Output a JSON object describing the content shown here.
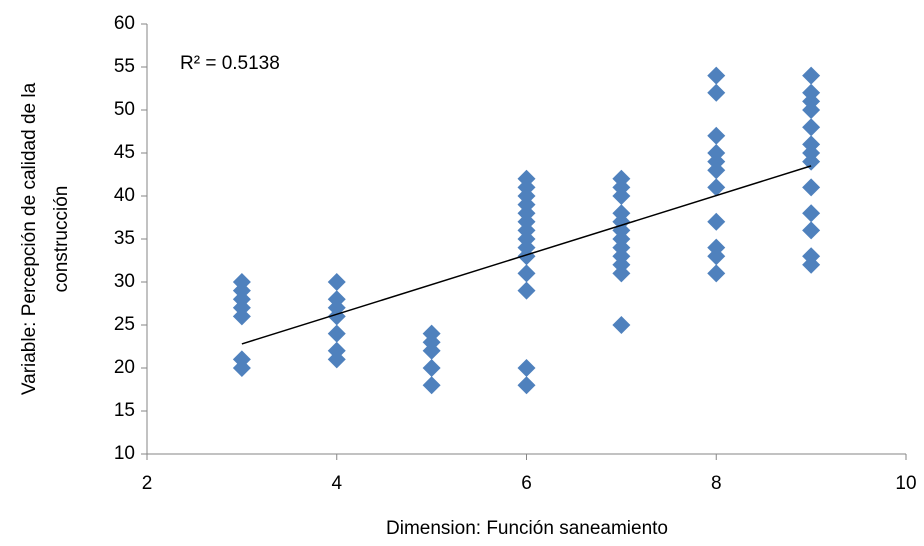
{
  "chart_data": {
    "type": "scatter",
    "x_label": "Dimension: Función saneamiento",
    "y_label": [
      "Variable: Percepción de calidad de la",
      "construcción"
    ],
    "annotation": "R² = 0.5138",
    "color": "#4f81bd",
    "x": [
      3,
      3,
      3,
      3,
      3,
      3,
      3,
      4,
      4,
      4,
      4,
      4,
      4,
      4,
      5,
      5,
      5,
      5,
      5,
      6,
      6,
      6,
      6,
      6,
      6,
      6,
      6,
      6,
      6,
      6,
      6,
      6,
      6,
      7,
      7,
      7,
      7,
      7,
      7,
      7,
      7,
      7,
      7,
      7,
      7,
      8,
      8,
      8,
      8,
      8,
      8,
      8,
      8,
      8,
      8,
      8,
      9,
      9,
      9,
      9,
      9,
      9,
      9,
      9,
      9,
      9,
      9,
      9,
      9
    ],
    "y": [
      30,
      29,
      28,
      27,
      26,
      21,
      20,
      30,
      28,
      27,
      26,
      24,
      22,
      21,
      24,
      23,
      22,
      20,
      18,
      42,
      41,
      40,
      39,
      38,
      37,
      36,
      35,
      34,
      33,
      31,
      29,
      20,
      18,
      42,
      41,
      40,
      38,
      37,
      36,
      35,
      34,
      33,
      32,
      31,
      25,
      54,
      52,
      47,
      45,
      44,
      43,
      41,
      37,
      34,
      33,
      31,
      54,
      52,
      51,
      50,
      48,
      46,
      45,
      44,
      41,
      38,
      36,
      33,
      32
    ],
    "trendline": {
      "x": [
        3,
        9
      ],
      "y": [
        22.8,
        43.5
      ],
      "color": "#000000"
    },
    "xlim": [
      2,
      10
    ],
    "xticks": [
      2,
      4,
      6,
      8,
      10
    ],
    "ylim": [
      10,
      60
    ],
    "yticks": [
      10,
      15,
      20,
      25,
      30,
      35,
      40,
      45,
      50,
      55,
      60
    ]
  }
}
